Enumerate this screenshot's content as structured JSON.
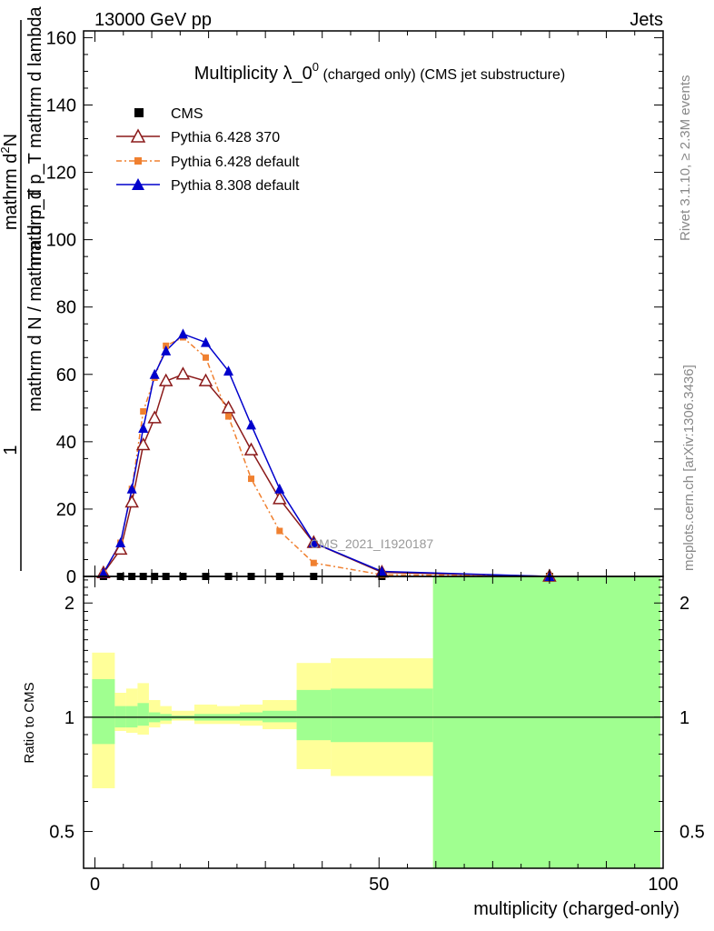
{
  "header": {
    "left": "13000 GeV pp",
    "right": "Jets"
  },
  "side_labels": {
    "rivet": "Rivet 3.1.10, ≥ 2.3M events",
    "mcplots": "mcplots.cern.ch [arXiv:1306.3436]"
  },
  "colors": {
    "cms": "#000000",
    "pythia6_370": "#8b1a1a",
    "pythia6_default": "#f08030",
    "pythia8_default": "#0000cc",
    "band_inner": "#a0ff90",
    "band_outer": "#ffff99"
  },
  "chart_data": [
    {
      "type": "line",
      "title": "Multiplicity λ_0",
      "title_superscript": "0",
      "title_suffix": " (charged only) (CMS jet substructure)",
      "watermark": "CMS_2021_I1920187",
      "ylabel_numerator": "mathrm d²N",
      "ylabel_numerator_text": "mathrm d",
      "ylabel_numerator_sup": "2",
      "ylabel_numerator_tail": "N",
      "ylabel_denominator": "mathrm d p_T mathrm d lambda",
      "ylabel_prefix_top": "1",
      "ylabel_prefix_bottom": "mathrm d N / mathrm d p_T",
      "xlim": [
        -2,
        100
      ],
      "ylim": [
        0,
        162
      ],
      "yticks": [
        0,
        20,
        40,
        60,
        80,
        100,
        120,
        140,
        160
      ],
      "ytick_labels": [
        "0",
        "20",
        "40",
        "60",
        "80",
        "100",
        "120",
        "140",
        "160"
      ],
      "series": [
        {
          "name": "CMS",
          "marker": "square",
          "x": [
            1.5,
            4.5,
            6.5,
            8.5,
            10.5,
            12.5,
            15.5,
            19.5,
            23.5,
            27.5,
            32.5,
            38.5,
            50.5,
            80
          ],
          "y": [
            0,
            0,
            0,
            0,
            0,
            0,
            0,
            0,
            0,
            0,
            0,
            0,
            0,
            0
          ]
        },
        {
          "name": "Pythia 6.428 370",
          "marker": "open-triangle",
          "x": [
            1.5,
            4.5,
            6.5,
            8.5,
            10.5,
            12.5,
            15.5,
            19.5,
            23.5,
            27.5,
            32.5,
            38.5,
            50.5,
            80
          ],
          "y": [
            1,
            8,
            22,
            39,
            47,
            58,
            60,
            58,
            50,
            37.5,
            23,
            10,
            1.2,
            0
          ]
        },
        {
          "name": "Pythia 6.428 default",
          "marker": "filled-square",
          "x": [
            1.5,
            4.5,
            6.5,
            8.5,
            10.5,
            12.5,
            15.5,
            19.5,
            23.5,
            27.5,
            32.5,
            38.5,
            50.5,
            80
          ],
          "y": [
            1,
            10,
            26,
            49,
            59,
            68.5,
            71,
            65,
            47.5,
            29,
            13.5,
            4,
            0.5,
            0
          ]
        },
        {
          "name": "Pythia 8.308 default",
          "marker": "filled-triangle",
          "x": [
            1.5,
            4.5,
            6.5,
            8.5,
            10.5,
            12.5,
            15.5,
            19.5,
            23.5,
            27.5,
            32.5,
            38.5,
            50.5,
            80
          ],
          "y": [
            1,
            10,
            26,
            44,
            60,
            67,
            72,
            69.5,
            61,
            45,
            26,
            10,
            1.5,
            0
          ]
        }
      ],
      "legend": [
        "CMS",
        "Pythia 6.428 370",
        "Pythia 6.428 default",
        "Pythia 8.308 default"
      ],
      "legend_position": "top-left"
    },
    {
      "type": "area",
      "ylabel": "Ratio to CMS",
      "xlabel": "multiplicity (charged-only)",
      "xlim": [
        -2,
        100
      ],
      "ylim": [
        0.4,
        2.35
      ],
      "scale": "log",
      "xticks": [
        0,
        50,
        100
      ],
      "xtick_labels": [
        "0",
        "50",
        "100"
      ],
      "yticks": [
        0.5,
        1,
        2
      ],
      "ytick_labels": [
        "0.5",
        "1",
        "2"
      ],
      "bins": [
        {
          "x0": -0.5,
          "x1": 3.5,
          "inner": [
            0.85,
            1.26
          ],
          "outer": [
            0.65,
            1.48
          ]
        },
        {
          "x0": 3.5,
          "x1": 5.5,
          "inner": [
            0.94,
            1.07
          ],
          "outer": [
            0.92,
            1.16
          ]
        },
        {
          "x0": 5.5,
          "x1": 7.5,
          "inner": [
            0.94,
            1.07
          ],
          "outer": [
            0.91,
            1.19
          ]
        },
        {
          "x0": 7.5,
          "x1": 9.5,
          "inner": [
            0.95,
            1.09
          ],
          "outer": [
            0.9,
            1.23
          ]
        },
        {
          "x0": 9.5,
          "x1": 11.5,
          "inner": [
            0.97,
            1.03
          ],
          "outer": [
            0.94,
            1.11
          ]
        },
        {
          "x0": 11.5,
          "x1": 13.5,
          "inner": [
            0.98,
            1.02
          ],
          "outer": [
            0.96,
            1.07
          ]
        },
        {
          "x0": 13.5,
          "x1": 17.5,
          "inner": [
            0.99,
            1.01
          ],
          "outer": [
            0.98,
            1.04
          ]
        },
        {
          "x0": 17.5,
          "x1": 21.5,
          "inner": [
            0.98,
            1.02
          ],
          "outer": [
            0.96,
            1.08
          ]
        },
        {
          "x0": 21.5,
          "x1": 25.5,
          "inner": [
            0.98,
            1.02
          ],
          "outer": [
            0.96,
            1.07
          ]
        },
        {
          "x0": 25.5,
          "x1": 29.5,
          "inner": [
            0.98,
            1.03
          ],
          "outer": [
            0.95,
            1.08
          ]
        },
        {
          "x0": 29.5,
          "x1": 35.5,
          "inner": [
            0.97,
            1.04
          ],
          "outer": [
            0.93,
            1.11
          ]
        },
        {
          "x0": 35.5,
          "x1": 41.5,
          "inner": [
            0.87,
            1.18
          ],
          "outer": [
            0.73,
            1.39
          ]
        },
        {
          "x0": 41.5,
          "x1": 59.5,
          "inner": [
            0.86,
            1.19
          ],
          "outer": [
            0.7,
            1.43
          ]
        },
        {
          "x0": 59.5,
          "x1": 99.5,
          "inner": [
            0.3,
            3.0
          ],
          "outer": [
            0.3,
            3.0
          ]
        }
      ]
    }
  ]
}
